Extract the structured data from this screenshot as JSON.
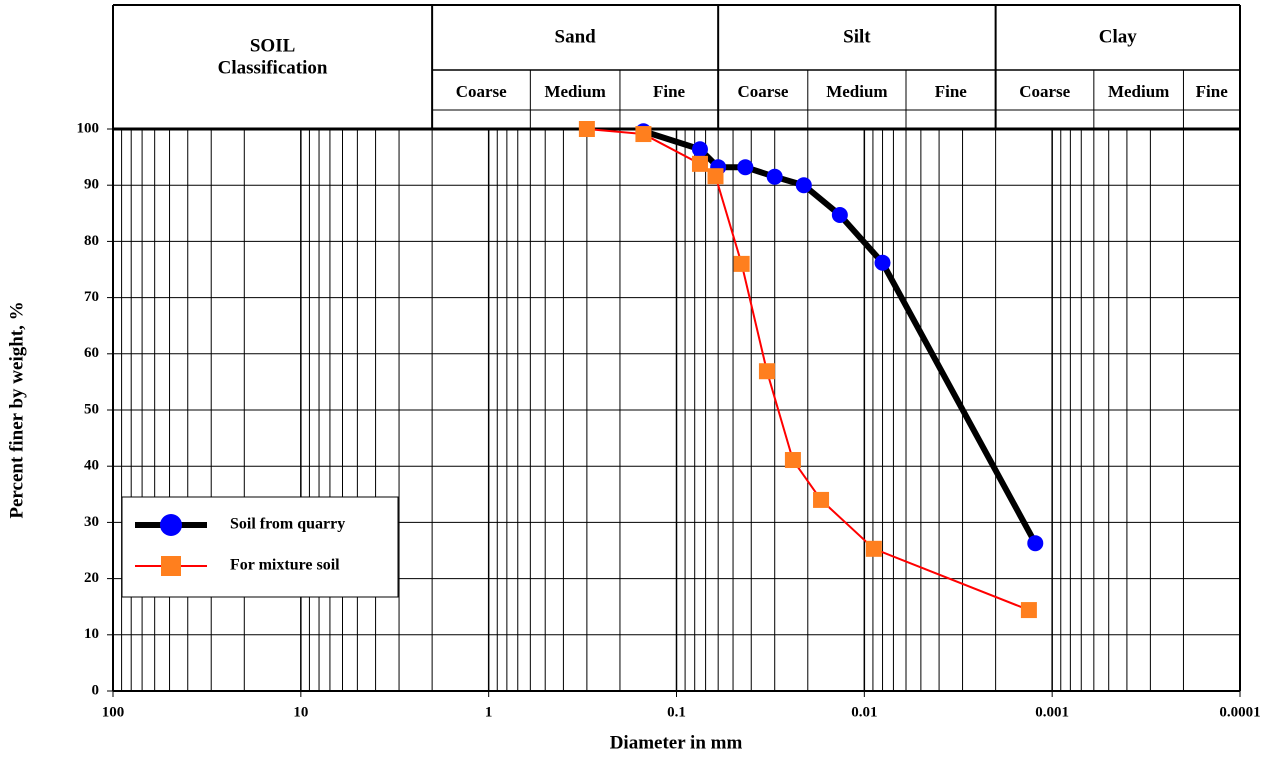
{
  "chart_data": {
    "type": "line",
    "xlabel": "Diameter in mm",
    "ylabel": "Percent finer by weight, %",
    "xlog": true,
    "xlim": [
      100,
      0.0001
    ],
    "xticks": [
      100,
      10,
      1,
      0.1,
      0.01,
      0.001,
      0.0001
    ],
    "ylim": [
      0,
      100
    ],
    "yticks": [
      0,
      10,
      20,
      30,
      40,
      50,
      60,
      70,
      80,
      90,
      100
    ],
    "grid": true,
    "log_minor_grid": true,
    "legend": "lower left",
    "classification": {
      "label": [
        "SOIL",
        "Classification"
      ],
      "groups": [
        {
          "name": "Sand",
          "subs": [
            {
              "name": "Coarse",
              "range": [
                2,
                0.6
              ]
            },
            {
              "name": "Medium",
              "range": [
                0.6,
                0.2
              ]
            },
            {
              "name": "Fine",
              "range": [
                0.2,
                0.06
              ]
            }
          ]
        },
        {
          "name": "Silt",
          "subs": [
            {
              "name": "Coarse",
              "range": [
                0.06,
                0.02
              ]
            },
            {
              "name": "Medium",
              "range": [
                0.02,
                0.006
              ]
            },
            {
              "name": "Fine",
              "range": [
                0.006,
                0.002
              ]
            }
          ]
        },
        {
          "name": "Clay",
          "subs": [
            {
              "name": "Coarse",
              "range": [
                0.002,
                0.0006
              ]
            },
            {
              "name": "Medium",
              "range": [
                0.0006,
                0.0002
              ]
            },
            {
              "name": "Fine",
              "range": [
                0.0002,
                0.0001
              ]
            }
          ]
        }
      ]
    },
    "series": [
      {
        "name": "Soil from quarry",
        "color": "#0000ff",
        "line_color": "#000000",
        "line_width": 6,
        "marker": "circle",
        "x": [
          0.15,
          0.075,
          0.06,
          0.043,
          0.03,
          0.021,
          0.0135,
          0.008,
          0.00123
        ],
        "values": [
          99.6,
          96.4,
          93.2,
          93.2,
          91.5,
          90,
          84.7,
          76.2,
          26.3
        ]
      },
      {
        "name": "For mixture soil",
        "color": "#ff7f1e",
        "line_color": "#ff0000",
        "line_width": 2,
        "marker": "square",
        "x": [
          0.3,
          0.15,
          0.075,
          0.062,
          0.045,
          0.033,
          0.024,
          0.017,
          0.0089,
          0.00133
        ],
        "values": [
          100,
          99.1,
          93.8,
          91.6,
          76,
          56.9,
          41.1,
          34,
          25.3,
          14.4
        ]
      }
    ]
  }
}
